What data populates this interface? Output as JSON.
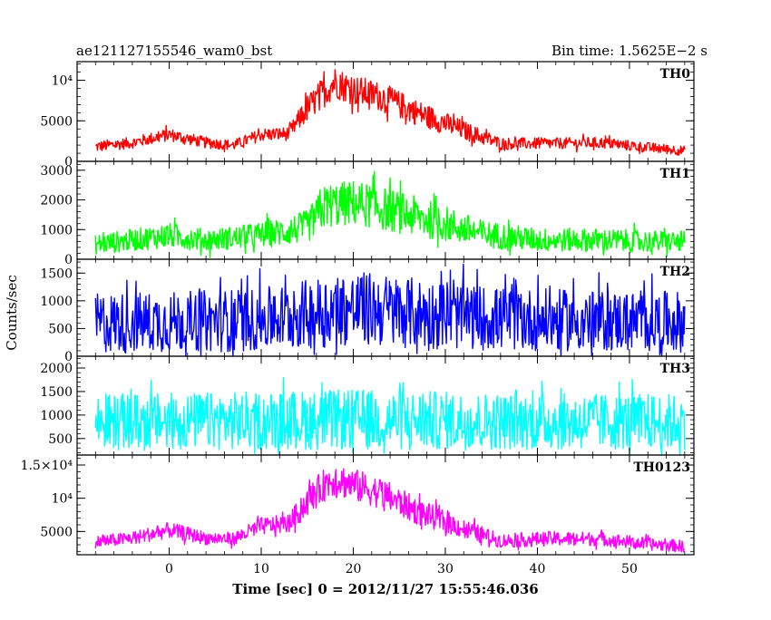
{
  "header": {
    "title": "ae121127155546_wam0_bst",
    "bin_time": "Bin time: 1.5625E−2 s"
  },
  "axes": {
    "ylabel": "Counts/sec",
    "xlabel": "Time [sec] 0 = 2012/11/27 15:55:46.036"
  },
  "chart_data": {
    "type": "line",
    "title": "ae121127155546_wam0_bst",
    "xlabel": "Time [sec] 0 = 2012/11/27 15:55:46.036",
    "ylabel": "Counts/sec",
    "xlim": [
      -10,
      57
    ],
    "x_ticks": [
      0,
      10,
      20,
      30,
      40,
      50
    ],
    "x_ticklabels": [
      "0",
      "10",
      "20",
      "30",
      "40",
      "50"
    ],
    "data_x_range": [
      -8,
      56
    ],
    "bin_time_s": 0.015625,
    "grid": false,
    "panels": [
      {
        "name": "TH0",
        "color": "#ff0000",
        "ylim": [
          0,
          12300
        ],
        "y_ticks": [
          0,
          5000,
          10000
        ],
        "y_ticklabels": [
          "0",
          "5000",
          "10⁴"
        ],
        "x": [
          -8,
          -4,
          0,
          4,
          7,
          10,
          13,
          15,
          17,
          18,
          20,
          23,
          27,
          32,
          36,
          41,
          47,
          52,
          56
        ],
        "y": [
          1800,
          2300,
          3300,
          2300,
          2000,
          3300,
          3400,
          6500,
          8800,
          9800,
          8800,
          8000,
          6000,
          3800,
          2200,
          2200,
          2300,
          1700,
          1300
        ],
        "spread": [
          1400,
          1400,
          1600,
          1400,
          1300,
          1600,
          1700,
          3400,
          4000,
          4000,
          3800,
          3600,
          3200,
          2400,
          1500,
          1400,
          1400,
          1300,
          1200
        ]
      },
      {
        "name": "TH1",
        "color": "#00ff00",
        "ylim": [
          0,
          3300
        ],
        "y_ticks": [
          0,
          1000,
          2000,
          3000
        ],
        "y_ticklabels": [
          "0",
          "1000",
          "2000",
          "3000"
        ],
        "x": [
          -8,
          -4,
          0,
          4,
          8,
          12,
          15,
          17,
          20,
          22,
          26,
          30,
          34,
          40,
          46,
          52,
          56
        ],
        "y": [
          500,
          650,
          800,
          650,
          750,
          900,
          1100,
          1800,
          1900,
          1800,
          1500,
          1200,
          850,
          650,
          650,
          600,
          600
        ],
        "spread": [
          700,
          750,
          850,
          750,
          800,
          950,
          1100,
          1500,
          1550,
          1500,
          1400,
          1200,
          950,
          800,
          800,
          750,
          700
        ]
      },
      {
        "name": "TH2",
        "color": "#0000ff",
        "ylim": [
          0,
          1750
        ],
        "y_ticks": [
          0,
          500,
          1000,
          1500
        ],
        "y_ticklabels": [
          "0",
          "500",
          "1000",
          "1500"
        ],
        "x": [
          -8,
          0,
          10,
          15,
          18,
          22,
          28,
          35,
          45,
          56
        ],
        "y": [
          600,
          620,
          660,
          760,
          850,
          850,
          760,
          680,
          640,
          620
        ],
        "spread": [
          1100,
          1100,
          1150,
          1250,
          1350,
          1350,
          1250,
          1150,
          1100,
          1100
        ]
      },
      {
        "name": "TH3",
        "color": "#00ffff",
        "ylim": [
          150,
          2250
        ],
        "y_ticks": [
          500,
          1000,
          1500,
          2000
        ],
        "y_ticklabels": [
          "500",
          "1000",
          "1500",
          "2000"
        ],
        "x": [
          -8,
          0,
          10,
          20,
          30,
          40,
          50,
          56
        ],
        "y": [
          850,
          870,
          880,
          900,
          880,
          860,
          860,
          850
        ],
        "spread": [
          1200,
          1200,
          1250,
          1300,
          1250,
          1200,
          1200,
          1200
        ]
      },
      {
        "name": "TH0123",
        "color": "#ff00ff",
        "ylim": [
          1500,
          16500
        ],
        "y_ticks": [
          5000,
          10000,
          15000
        ],
        "y_ticklabels": [
          "5000",
          "10⁴",
          "1.5×10⁴"
        ],
        "x": [
          -8,
          -4,
          0,
          4,
          7,
          10,
          13,
          15,
          17,
          18,
          20,
          23,
          27,
          32,
          36,
          41,
          47,
          52,
          56
        ],
        "y": [
          3400,
          4000,
          5200,
          4000,
          3900,
          5800,
          6200,
          9500,
          12200,
          13000,
          12000,
          10800,
          8000,
          5400,
          3600,
          3900,
          3900,
          3100,
          2800
        ],
        "spread": [
          1900,
          2000,
          2400,
          2000,
          2000,
          2600,
          2800,
          4400,
          5000,
          5200,
          5000,
          4700,
          4000,
          3000,
          2100,
          2200,
          2100,
          1900,
          1800
        ]
      }
    ]
  }
}
